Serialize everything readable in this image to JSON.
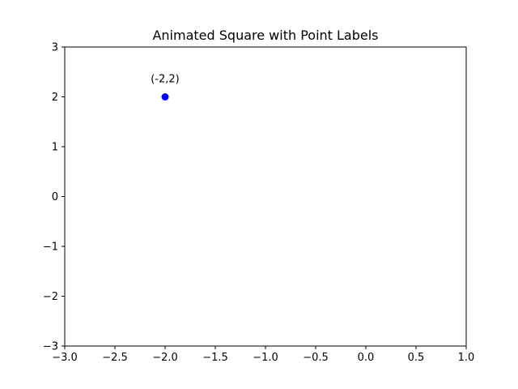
{
  "chart_data": {
    "type": "scatter",
    "title": "Animated Square with Point Labels",
    "xlabel": "",
    "ylabel": "",
    "xlim": [
      -3.0,
      1.0
    ],
    "ylim": [
      -3,
      3
    ],
    "x_ticks": [
      "−3.0",
      "−2.5",
      "−2.0",
      "−1.5",
      "−1.0",
      "−0.5",
      "0.0",
      "0.5",
      "1.0"
    ],
    "y_ticks": [
      "−3",
      "−2",
      "−1",
      "0",
      "1",
      "2",
      "3"
    ],
    "grid": false,
    "legend": "none",
    "series": [
      {
        "color": "#0000ff",
        "points": [
          {
            "x": -2,
            "y": 2,
            "label": "(-2,2)"
          }
        ]
      }
    ]
  }
}
